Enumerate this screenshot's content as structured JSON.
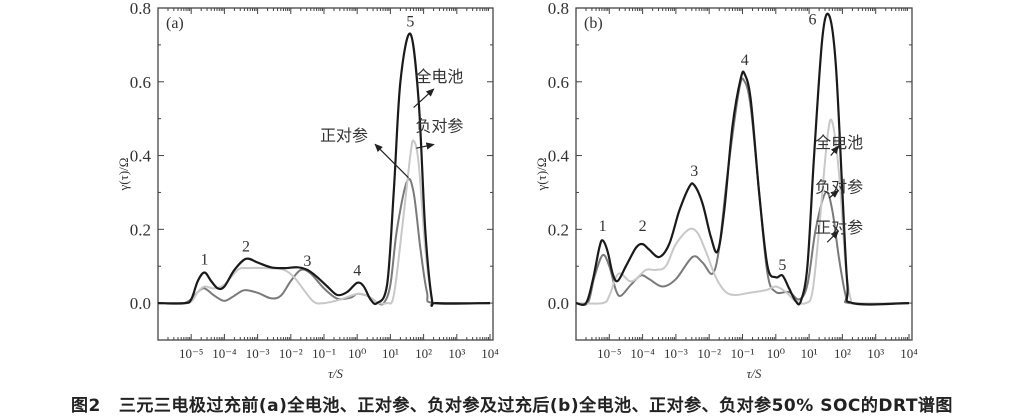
{
  "caption": {
    "figure_number": "图2",
    "text": "三元三电极过充前(a)全电池、正对参、负对参及过充后(b)全电池、正对参、负对参50% SOC的DRT谱图"
  },
  "colors": {
    "full_cell": "#1a1a1a",
    "positive_ref": "#7a7a7a",
    "negative_ref": "#c8c8c8",
    "axis": "#444444"
  },
  "chart_data": [
    {
      "type": "line",
      "panel_label": "(a)",
      "xlabel": "τ/S",
      "ylabel": "γ(τ)/Ω",
      "x_scale": "log",
      "xlim": [
        1e-06,
        10000.0
      ],
      "ylim": [
        -0.1,
        0.8
      ],
      "x_ticks": [
        "10⁻⁵",
        "10⁻⁴",
        "10⁻³",
        "10⁻²",
        "10⁻¹",
        "10⁰",
        "10¹",
        "10²",
        "10³",
        "10⁴"
      ],
      "y_ticks": [
        "0.0",
        "0.2",
        "0.4",
        "0.6",
        "0.8"
      ],
      "grid": false,
      "series": [
        {
          "name": "全电池",
          "color": "#1a1a1a",
          "x": [
            1e-06,
            6.31e-06,
            1e-05,
            1.58e-05,
            2.51e-05,
            3.98e-05,
            6.31e-05,
            0.0001,
            0.0002,
            0.000447,
            0.001,
            0.00251,
            0.00631,
            0.0158,
            0.0316,
            0.0631,
            0.126,
            0.251,
            0.501,
            1,
            1.58,
            2.51,
            3.98,
            7.94,
            12.6,
            20,
            39.8,
            70.8,
            112,
            178,
            251,
            10000
          ],
          "y": [
            0,
            0,
            0.01,
            0.06,
            0.083,
            0.06,
            0.04,
            0.045,
            0.09,
            0.12,
            0.11,
            0.097,
            0.095,
            0.097,
            0.09,
            0.07,
            0.045,
            0.022,
            0.03,
            0.055,
            0.045,
            0.01,
            0,
            0.05,
            0.3,
            0.6,
            0.73,
            0.55,
            0.2,
            0.01,
            0,
            0
          ]
        },
        {
          "name": "负对参",
          "color": "#c8c8c8",
          "x": [
            1e-06,
            7.94e-06,
            1.58e-05,
            2.51e-05,
            5.01e-05,
            0.0001,
            0.000251,
            0.000501,
            0.00251,
            0.00631,
            0.0126,
            0.0251,
            0.0501,
            0.1,
            0.316,
            1,
            2,
            3.98,
            7.94,
            12.6,
            22.4,
            39.8,
            50.1,
            70.8,
            112,
            178,
            251,
            10000
          ],
          "y": [
            0,
            0,
            0.03,
            0.045,
            0.04,
            0.05,
            0.09,
            0.095,
            0.094,
            0.09,
            0.07,
            0.035,
            0.003,
            0,
            0.01,
            0.025,
            0.02,
            0.002,
            0,
            0.02,
            0.2,
            0.4,
            0.44,
            0.38,
            0.15,
            0.01,
            0,
            0
          ]
        },
        {
          "name": "正对参",
          "color": "#7a7a7a",
          "x": [
            1e-06,
            6.31e-06,
            1.58e-05,
            2.51e-05,
            5.01e-05,
            0.0001,
            0.0002,
            0.000398,
            0.001,
            0.00251,
            0.00501,
            0.01,
            0.02,
            0.0398,
            0.1,
            0.251,
            0.631,
            1,
            2,
            3.98,
            6.31,
            10,
            15.8,
            31.6,
            50.1,
            79.4,
            126,
            200,
            10000
          ],
          "y": [
            0,
            0,
            0.03,
            0.04,
            0.02,
            0.006,
            0.02,
            0.035,
            0.028,
            0.013,
            0.02,
            0.06,
            0.09,
            0.08,
            0.04,
            0.012,
            0.015,
            0.025,
            0.02,
            0.002,
            0,
            0.05,
            0.2,
            0.33,
            0.3,
            0.15,
            0.03,
            0,
            0
          ]
        }
      ],
      "peak_labels": [
        {
          "text": "1",
          "x": 2.51e-05,
          "y": 0.105
        },
        {
          "text": "2",
          "x": 0.000447,
          "y": 0.14
        },
        {
          "text": "3",
          "x": 0.0316,
          "y": 0.1
        },
        {
          "text": "4",
          "x": 1,
          "y": 0.075
        },
        {
          "text": "5",
          "x": 39.8,
          "y": 0.75
        }
      ],
      "annotations": [
        {
          "text": "全电池",
          "tx": 300,
          "ty": 0.6,
          "from_x": 50,
          "from_y": 0.53,
          "to_x": 200,
          "to_y": 0.58
        },
        {
          "text": "负对参",
          "tx": 300,
          "ty": 0.465,
          "from_x": 60,
          "from_y": 0.42,
          "to_x": 200,
          "to_y": 0.43
        },
        {
          "text": "正对参",
          "tx": 0.4,
          "ty": 0.44,
          "from_x": 35,
          "from_y": 0.34,
          "to_x": 3.5,
          "to_y": 0.43
        }
      ]
    },
    {
      "type": "line",
      "panel_label": "(b)",
      "xlabel": "τ/S",
      "ylabel": "γ(τ)/Ω",
      "x_scale": "log",
      "xlim": [
        1e-06,
        10000.0
      ],
      "ylim": [
        -0.1,
        0.8
      ],
      "x_ticks": [
        "10⁻⁵",
        "10⁻⁴",
        "10⁻³",
        "10⁻²",
        "10⁻¹",
        "10⁰",
        "10¹",
        "10²",
        "10³",
        "10⁴"
      ],
      "y_ticks": [
        "0.0",
        "0.2",
        "0.4",
        "0.6",
        "0.8"
      ],
      "grid": false,
      "series": [
        {
          "name": "全电池",
          "color": "#1a1a1a",
          "x": [
            1e-06,
            2e-06,
            3.16e-06,
            5.01e-06,
            6.31e-06,
            8.91e-06,
            1.26e-05,
            1.78e-05,
            3.16e-05,
            6.31e-05,
            0.0001,
            0.000158,
            0.000316,
            0.000631,
            0.00126,
            0.00251,
            0.00355,
            0.00631,
            0.0112,
            0.0178,
            0.0282,
            0.0501,
            0.0891,
            0.117,
            0.178,
            0.316,
            0.562,
            1,
            1.58,
            2.51,
            3.98,
            5.62,
            8.91,
            14.1,
            25.1,
            39.8,
            63.1,
            100,
            141,
            200,
            10000
          ],
          "y": [
            0,
            0,
            0.06,
            0.15,
            0.17,
            0.14,
            0.08,
            0.06,
            0.1,
            0.15,
            0.16,
            0.145,
            0.125,
            0.16,
            0.25,
            0.315,
            0.32,
            0.27,
            0.18,
            0.14,
            0.25,
            0.48,
            0.61,
            0.62,
            0.55,
            0.3,
            0.1,
            0.07,
            0.075,
            0.04,
            0.005,
            0.005,
            0.1,
            0.4,
            0.72,
            0.78,
            0.65,
            0.3,
            0.05,
            0,
            0
          ]
        },
        {
          "name": "负对参",
          "color": "#c8c8c8",
          "x": [
            1e-06,
            6.31e-06,
            1e-05,
            1.58e-05,
            2.24e-05,
            3.98e-05,
            6.31e-05,
            0.000126,
            0.000251,
            0.000501,
            0.001,
            0.00251,
            0.00447,
            0.00794,
            0.0158,
            0.0316,
            0.0631,
            0.158,
            0.501,
            1,
            2,
            3.98,
            7.94,
            12.6,
            20,
            35.5,
            50.1,
            79.4,
            126,
            178,
            251,
            10000
          ],
          "y": [
            0,
            0,
            0.02,
            0.07,
            0.08,
            0.06,
            0.065,
            0.09,
            0.09,
            0.1,
            0.16,
            0.2,
            0.19,
            0.14,
            0.07,
            0.03,
            0.022,
            0.028,
            0.035,
            0.045,
            0.03,
            0.005,
            0,
            0.03,
            0.2,
            0.45,
            0.49,
            0.35,
            0.1,
            0.01,
            0,
            0
          ]
        },
        {
          "name": "正对参",
          "color": "#7a7a7a",
          "x": [
            1e-06,
            2.24e-06,
            3.55e-06,
            6.31e-06,
            1e-05,
            1.58e-05,
            2.24e-05,
            4.47e-05,
            8.91e-05,
            0.000158,
            0.000398,
            0.001,
            0.00316,
            0.00631,
            0.0126,
            0.02,
            0.0355,
            0.0794,
            0.117,
            0.178,
            0.316,
            0.562,
            1,
            2.51,
            5.01,
            8.91,
            15.8,
            31.6,
            50.1,
            79.4,
            126,
            178,
            10000
          ],
          "y": [
            0,
            0,
            0.07,
            0.13,
            0.1,
            0.035,
            0.02,
            0.05,
            0.075,
            0.065,
            0.045,
            0.065,
            0.125,
            0.11,
            0.08,
            0.15,
            0.35,
            0.58,
            0.6,
            0.53,
            0.3,
            0.08,
            0.03,
            0.03,
            0.01,
            0.05,
            0.2,
            0.3,
            0.25,
            0.12,
            0.02,
            0,
            0
          ]
        }
      ],
      "peak_labels": [
        {
          "text": "1",
          "x": 6.31e-06,
          "y": 0.195
        },
        {
          "text": "2",
          "x": 0.0001,
          "y": 0.195
        },
        {
          "text": "3",
          "x": 0.00355,
          "y": 0.345
        },
        {
          "text": "4",
          "x": 0.117,
          "y": 0.645
        },
        {
          "text": "5",
          "x": 1.58,
          "y": 0.09
        },
        {
          "text": "6",
          "x": 12.6,
          "y": 0.755
        }
      ],
      "annotations": [
        {
          "text": "全电池",
          "tx": 80,
          "ty": 0.42,
          "from_x": 45,
          "from_y": 0.4,
          "to_x": 75,
          "to_y": 0.425
        },
        {
          "text": "负对参",
          "tx": 80,
          "ty": 0.3,
          "from_x": 40,
          "from_y": 0.285,
          "to_x": 75,
          "to_y": 0.305
        },
        {
          "text": "正对参",
          "tx": 80,
          "ty": 0.19,
          "from_x": 35,
          "from_y": 0.165,
          "to_x": 75,
          "to_y": 0.195
        }
      ]
    }
  ]
}
